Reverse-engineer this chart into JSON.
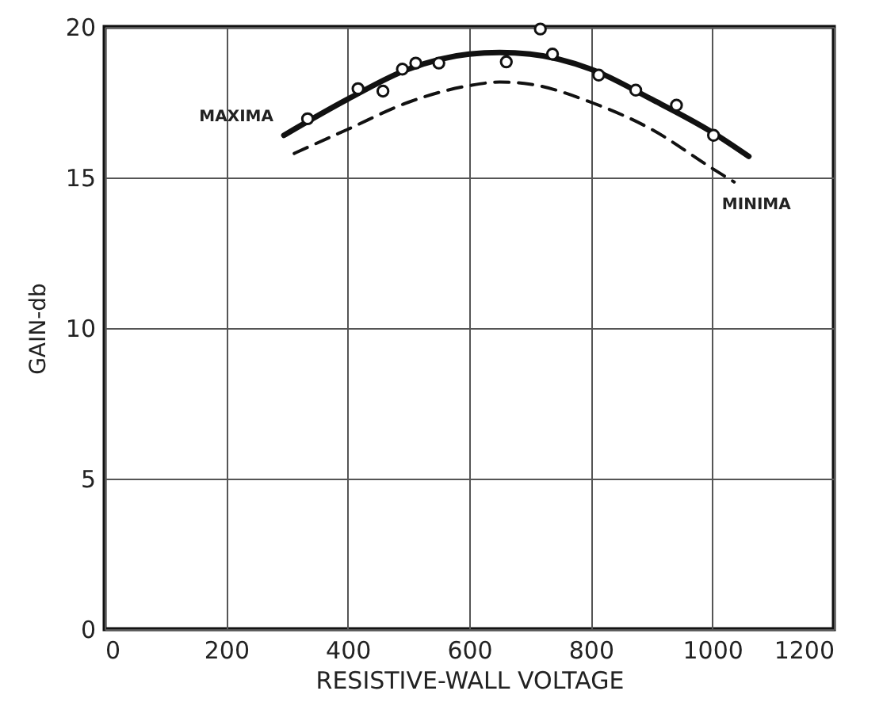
{
  "chart_data": {
    "type": "line",
    "xlabel": "RESISTIVE-WALL VOLTAGE",
    "ylabel": "GAIN-db",
    "xlim": [
      0,
      1200
    ],
    "ylim": [
      0,
      20
    ],
    "xticks": [
      0,
      200,
      400,
      600,
      800,
      1000,
      1200
    ],
    "yticks": [
      0,
      5,
      10,
      15,
      20
    ],
    "grid": true,
    "series": [
      {
        "name": "MAXIMA",
        "color": "#111111",
        "line_style": "solid",
        "marker": "none",
        "x": [
          295,
          400,
          500,
          600,
          650,
          700,
          800,
          900,
          1000,
          1060
        ],
        "values": [
          16.4,
          17.6,
          18.6,
          19.1,
          19.15,
          19.1,
          18.6,
          17.6,
          16.5,
          15.7
        ]
      },
      {
        "name": "MINIMA",
        "color": "#111111",
        "line_style": "dashed",
        "marker": "none",
        "x": [
          312,
          400,
          500,
          600,
          650,
          700,
          800,
          900,
          1000,
          1036
        ],
        "values": [
          15.8,
          16.6,
          17.5,
          18.05,
          18.17,
          18.1,
          17.5,
          16.6,
          15.3,
          14.85
        ]
      },
      {
        "type": "scatter",
        "color": "#111111",
        "marker": "circle",
        "x": [
          334,
          417,
          458,
          490,
          512,
          550,
          661,
          717,
          737,
          813,
          874,
          941,
          1002
        ],
        "values": [
          16.95,
          17.95,
          17.87,
          18.6,
          18.8,
          18.8,
          18.84,
          19.93,
          19.1,
          18.4,
          17.9,
          17.4,
          16.4
        ]
      }
    ]
  }
}
